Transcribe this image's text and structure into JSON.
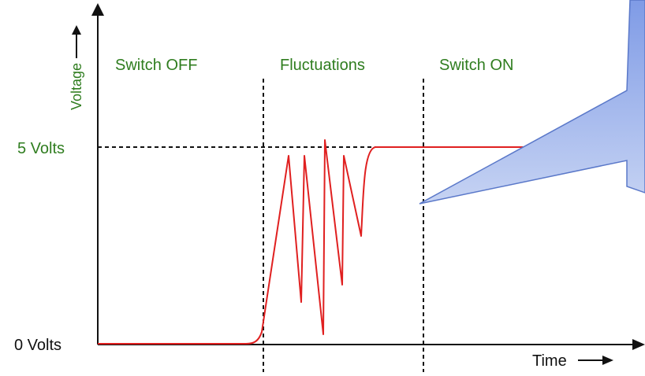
{
  "y_axis_label": "Voltage",
  "x_axis_label": "Time",
  "y_levels": {
    "high": "5 Volts",
    "low": "0 Volts"
  },
  "regions": [
    "Switch OFF",
    "Fluctuations",
    "Switch ON"
  ],
  "colors": {
    "signal": "#e02020",
    "label_green": "#2f7d1f",
    "axis": "#111111",
    "callout_top": "#7f9be6",
    "callout_bottom": "#c6d3f3"
  }
}
